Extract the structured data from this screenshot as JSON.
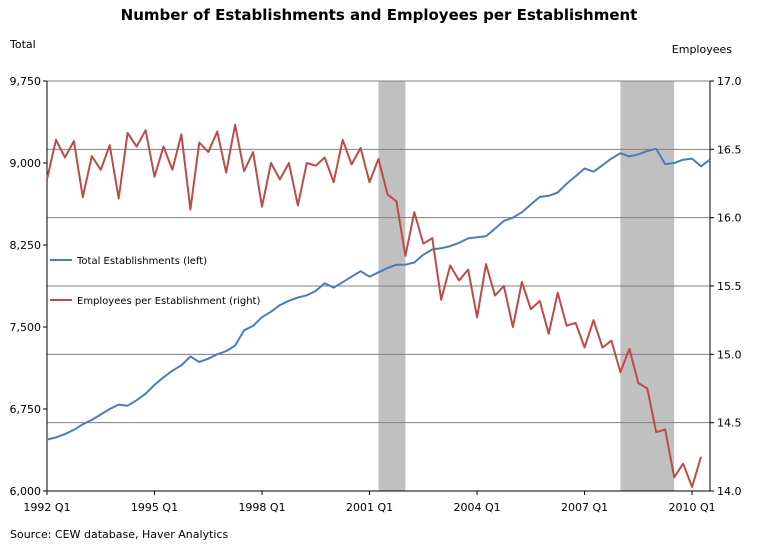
{
  "chart_data": {
    "type": "line",
    "title": "Number of Establishments and Employees per Establishment",
    "left_axis_title": "Total",
    "right_axis_title": "Employees",
    "source": "Source: CEW database, Haver Analytics",
    "x_range": [
      1992.0,
      2010.5
    ],
    "left_ylim": [
      6000,
      9750
    ],
    "right_ylim": [
      14.0,
      17.0
    ],
    "left_ticks": [
      {
        "value": 6000,
        "label": "6,000"
      },
      {
        "value": 6750,
        "label": "6,750"
      },
      {
        "value": 7500,
        "label": "7,500"
      },
      {
        "value": 8250,
        "label": "8,250"
      },
      {
        "value": 9000,
        "label": "9,000"
      },
      {
        "value": 9750,
        "label": "9,750"
      }
    ],
    "right_ticks": [
      {
        "value": 14.0,
        "label": "14.0"
      },
      {
        "value": 14.5,
        "label": "14.5"
      },
      {
        "value": 15.0,
        "label": "15.0"
      },
      {
        "value": 15.5,
        "label": "15.5"
      },
      {
        "value": 16.0,
        "label": "16.0"
      },
      {
        "value": 16.5,
        "label": "16.5"
      },
      {
        "value": 17.0,
        "label": "17.0"
      }
    ],
    "x_ticks": [
      {
        "value": 1992.0,
        "label": "1992 Q1"
      },
      {
        "value": 1995.0,
        "label": "1995 Q1"
      },
      {
        "value": 1998.0,
        "label": "1998 Q1"
      },
      {
        "value": 2001.0,
        "label": "2001 Q1"
      },
      {
        "value": 2004.0,
        "label": "2004 Q1"
      },
      {
        "value": 2007.0,
        "label": "2007 Q1"
      },
      {
        "value": 2010.0,
        "label": "2010 Q1"
      }
    ],
    "recessions": [
      {
        "start": 2001.25,
        "end": 2002.0
      },
      {
        "start": 2008.0,
        "end": 2009.5
      }
    ],
    "grid": true,
    "legend_position": "middle-left",
    "series": [
      {
        "name": "Total Establishments (left)",
        "axis": "left",
        "color": "#4a7ebb",
        "start": 1992.0,
        "step": 0.25,
        "values": [
          6470,
          6490,
          6520,
          6560,
          6610,
          6650,
          6700,
          6750,
          6790,
          6780,
          6830,
          6890,
          6970,
          7040,
          7100,
          7150,
          7230,
          7180,
          7210,
          7250,
          7280,
          7330,
          7470,
          7510,
          7590,
          7640,
          7700,
          7740,
          7770,
          7790,
          7830,
          7900,
          7860,
          7910,
          7960,
          8010,
          7960,
          8000,
          8040,
          8070,
          8070,
          8090,
          8160,
          8210,
          8220,
          8240,
          8270,
          8310,
          8320,
          8330,
          8400,
          8470,
          8500,
          8550,
          8620,
          8690,
          8700,
          8730,
          8810,
          8880,
          8950,
          8920,
          8980,
          9040,
          9090,
          9060,
          9080,
          9110,
          9130,
          8990,
          9000,
          9030,
          9040,
          8970,
          9030
        ]
      },
      {
        "name": "Employees per Establishment (right)",
        "axis": "right",
        "color": "#be4b48",
        "start": 1992.0,
        "step": 0.25,
        "values": [
          16.28,
          16.57,
          16.44,
          16.56,
          16.15,
          16.45,
          16.35,
          16.53,
          16.14,
          16.62,
          16.52,
          16.64,
          16.3,
          16.52,
          16.35,
          16.61,
          16.06,
          16.55,
          16.48,
          16.63,
          16.33,
          16.68,
          16.34,
          16.48,
          16.08,
          16.4,
          16.28,
          16.4,
          16.09,
          16.4,
          16.38,
          16.44,
          16.26,
          16.57,
          16.39,
          16.51,
          16.26,
          16.43,
          16.17,
          16.12,
          15.72,
          16.04,
          15.81,
          15.85,
          15.4,
          15.65,
          15.54,
          15.62,
          15.27,
          15.66,
          15.43,
          15.5,
          15.2,
          15.53,
          15.33,
          15.39,
          15.15,
          15.45,
          15.21,
          15.23,
          15.05,
          15.25,
          15.05,
          15.1,
          14.87,
          15.04,
          14.79,
          14.75,
          14.43,
          14.45,
          14.1,
          14.2,
          14.03,
          14.25
        ]
      }
    ]
  }
}
